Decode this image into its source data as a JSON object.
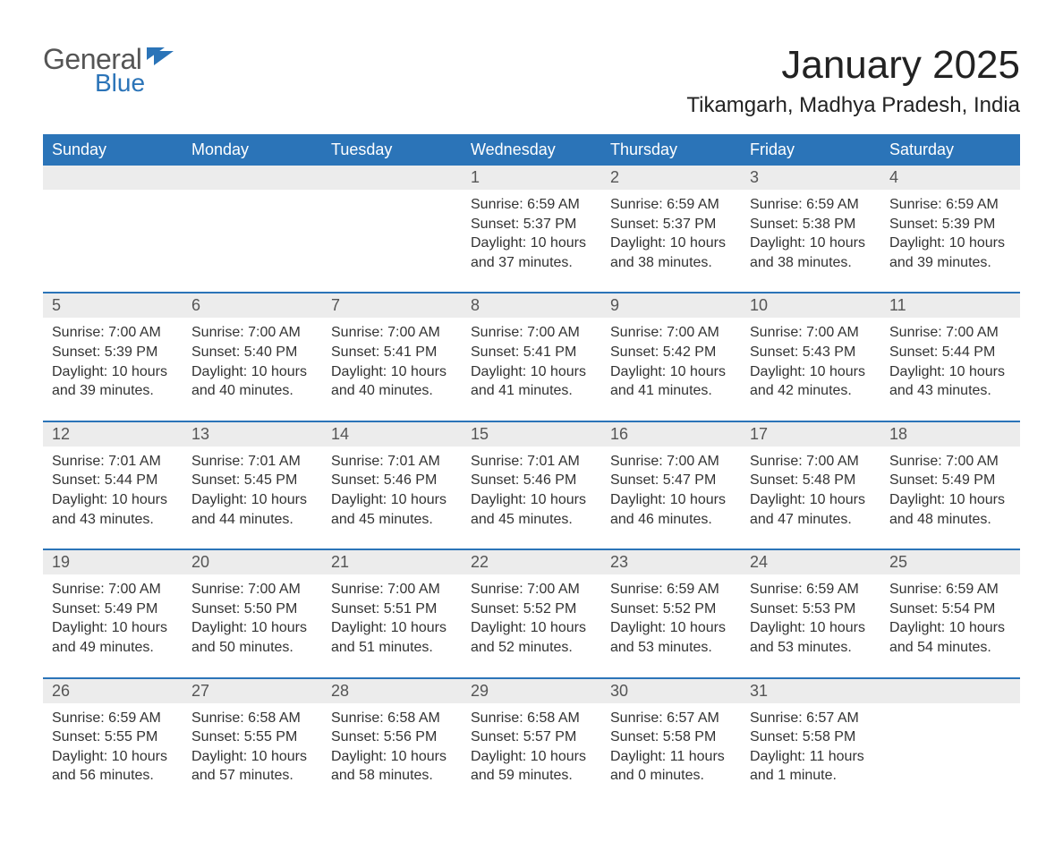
{
  "brand": {
    "word1": "General",
    "word2": "Blue"
  },
  "title": "January 2025",
  "location": "Tikamgarh, Madhya Pradesh, India",
  "colors": {
    "header_bg": "#2b74b8",
    "header_text": "#ffffff",
    "daynum_bg": "#ececec",
    "daynum_text": "#555555",
    "body_text": "#333333",
    "row_border": "#2b74b8",
    "page_bg": "#ffffff",
    "logo_gray": "#555555",
    "logo_blue": "#2b74b8"
  },
  "typography": {
    "month_title_fontsize": 44,
    "location_fontsize": 24,
    "dow_fontsize": 18,
    "daynum_fontsize": 18,
    "body_fontsize": 16
  },
  "layout": {
    "columns": 7,
    "leading_blanks": 3
  },
  "days_of_week": [
    "Sunday",
    "Monday",
    "Tuesday",
    "Wednesday",
    "Thursday",
    "Friday",
    "Saturday"
  ],
  "labels": {
    "sunrise": "Sunrise:",
    "sunset": "Sunset:",
    "daylight": "Daylight:"
  },
  "days": [
    {
      "n": "1",
      "sunrise": "6:59 AM",
      "sunset": "5:37 PM",
      "daylight": "10 hours and 37 minutes."
    },
    {
      "n": "2",
      "sunrise": "6:59 AM",
      "sunset": "5:37 PM",
      "daylight": "10 hours and 38 minutes."
    },
    {
      "n": "3",
      "sunrise": "6:59 AM",
      "sunset": "5:38 PM",
      "daylight": "10 hours and 38 minutes."
    },
    {
      "n": "4",
      "sunrise": "6:59 AM",
      "sunset": "5:39 PM",
      "daylight": "10 hours and 39 minutes."
    },
    {
      "n": "5",
      "sunrise": "7:00 AM",
      "sunset": "5:39 PM",
      "daylight": "10 hours and 39 minutes."
    },
    {
      "n": "6",
      "sunrise": "7:00 AM",
      "sunset": "5:40 PM",
      "daylight": "10 hours and 40 minutes."
    },
    {
      "n": "7",
      "sunrise": "7:00 AM",
      "sunset": "5:41 PM",
      "daylight": "10 hours and 40 minutes."
    },
    {
      "n": "8",
      "sunrise": "7:00 AM",
      "sunset": "5:41 PM",
      "daylight": "10 hours and 41 minutes."
    },
    {
      "n": "9",
      "sunrise": "7:00 AM",
      "sunset": "5:42 PM",
      "daylight": "10 hours and 41 minutes."
    },
    {
      "n": "10",
      "sunrise": "7:00 AM",
      "sunset": "5:43 PM",
      "daylight": "10 hours and 42 minutes."
    },
    {
      "n": "11",
      "sunrise": "7:00 AM",
      "sunset": "5:44 PM",
      "daylight": "10 hours and 43 minutes."
    },
    {
      "n": "12",
      "sunrise": "7:01 AM",
      "sunset": "5:44 PM",
      "daylight": "10 hours and 43 minutes."
    },
    {
      "n": "13",
      "sunrise": "7:01 AM",
      "sunset": "5:45 PM",
      "daylight": "10 hours and 44 minutes."
    },
    {
      "n": "14",
      "sunrise": "7:01 AM",
      "sunset": "5:46 PM",
      "daylight": "10 hours and 45 minutes."
    },
    {
      "n": "15",
      "sunrise": "7:01 AM",
      "sunset": "5:46 PM",
      "daylight": "10 hours and 45 minutes."
    },
    {
      "n": "16",
      "sunrise": "7:00 AM",
      "sunset": "5:47 PM",
      "daylight": "10 hours and 46 minutes."
    },
    {
      "n": "17",
      "sunrise": "7:00 AM",
      "sunset": "5:48 PM",
      "daylight": "10 hours and 47 minutes."
    },
    {
      "n": "18",
      "sunrise": "7:00 AM",
      "sunset": "5:49 PM",
      "daylight": "10 hours and 48 minutes."
    },
    {
      "n": "19",
      "sunrise": "7:00 AM",
      "sunset": "5:49 PM",
      "daylight": "10 hours and 49 minutes."
    },
    {
      "n": "20",
      "sunrise": "7:00 AM",
      "sunset": "5:50 PM",
      "daylight": "10 hours and 50 minutes."
    },
    {
      "n": "21",
      "sunrise": "7:00 AM",
      "sunset": "5:51 PM",
      "daylight": "10 hours and 51 minutes."
    },
    {
      "n": "22",
      "sunrise": "7:00 AM",
      "sunset": "5:52 PM",
      "daylight": "10 hours and 52 minutes."
    },
    {
      "n": "23",
      "sunrise": "6:59 AM",
      "sunset": "5:52 PM",
      "daylight": "10 hours and 53 minutes."
    },
    {
      "n": "24",
      "sunrise": "6:59 AM",
      "sunset": "5:53 PM",
      "daylight": "10 hours and 53 minutes."
    },
    {
      "n": "25",
      "sunrise": "6:59 AM",
      "sunset": "5:54 PM",
      "daylight": "10 hours and 54 minutes."
    },
    {
      "n": "26",
      "sunrise": "6:59 AM",
      "sunset": "5:55 PM",
      "daylight": "10 hours and 56 minutes."
    },
    {
      "n": "27",
      "sunrise": "6:58 AM",
      "sunset": "5:55 PM",
      "daylight": "10 hours and 57 minutes."
    },
    {
      "n": "28",
      "sunrise": "6:58 AM",
      "sunset": "5:56 PM",
      "daylight": "10 hours and 58 minutes."
    },
    {
      "n": "29",
      "sunrise": "6:58 AM",
      "sunset": "5:57 PM",
      "daylight": "10 hours and 59 minutes."
    },
    {
      "n": "30",
      "sunrise": "6:57 AM",
      "sunset": "5:58 PM",
      "daylight": "11 hours and 0 minutes."
    },
    {
      "n": "31",
      "sunrise": "6:57 AM",
      "sunset": "5:58 PM",
      "daylight": "11 hours and 1 minute."
    }
  ]
}
